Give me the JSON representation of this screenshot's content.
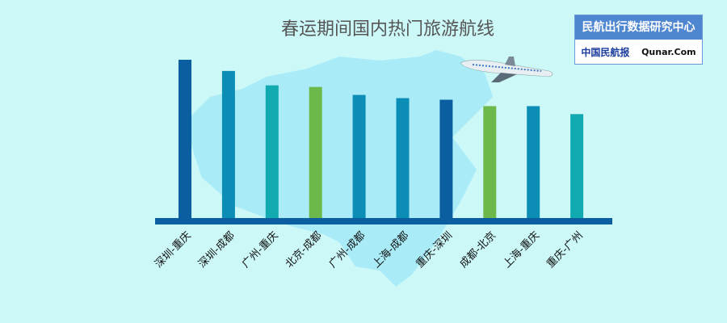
{
  "chart_data": {
    "type": "bar",
    "title": "春运期间国内热门旅游航线",
    "categories": [
      "深圳-重庆",
      "深圳-成都",
      "广州-重庆",
      "北京-成都",
      "广州-成都",
      "上海-成都",
      "重庆-深圳",
      "成都-北京",
      "上海-重庆",
      "重庆-广州"
    ],
    "values": [
      100,
      93,
      84,
      83,
      78,
      76,
      75,
      71,
      71,
      66
    ],
    "colors": [
      "#0b5fa0",
      "#0b8db5",
      "#10aab0",
      "#6cb84a",
      "#0b8db5",
      "#0b8db5",
      "#0b5fa0",
      "#6cb84a",
      "#0b8db5",
      "#10aab0"
    ],
    "ylim": [
      0,
      100
    ],
    "grid": false,
    "axis_color": "#0b5fa0"
  },
  "badge": {
    "title": "民航出行数据研究中心",
    "logo1": "中国民航报",
    "logo2": "Qunar.Com"
  },
  "decor": {
    "icons": [
      "china-map",
      "airplane-icon"
    ]
  }
}
